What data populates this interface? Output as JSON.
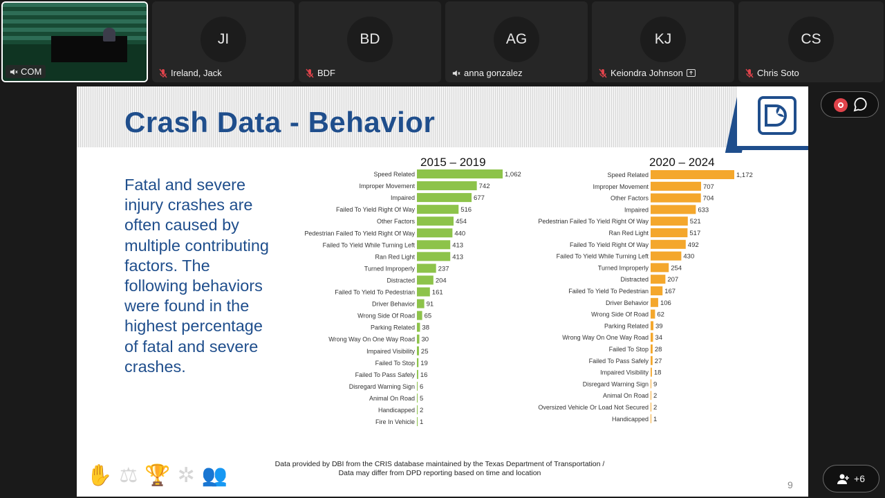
{
  "participants": [
    {
      "initials": "JI",
      "name": "Ireland, Jack",
      "mic": "muted"
    },
    {
      "initials": "BD",
      "name": "BDF",
      "mic": "muted"
    },
    {
      "initials": "AG",
      "name": "anna gonzalez",
      "mic": "speaker-off"
    },
    {
      "initials": "KJ",
      "name": "Keiondra Johnson",
      "mic": "muted"
    },
    {
      "initials": "CS",
      "name": "Chris Soto",
      "mic": "muted"
    }
  ],
  "video_tile": {
    "label": "COM"
  },
  "slide": {
    "title": "Crash Data - Behavior",
    "intro": "Fatal and severe injury crashes are often caused by multiple contributing factors. The following behaviors were found in the highest percentage of fatal and severe crashes.",
    "footer_line1": "Data provided by DBI from the CRIS database maintained by the Texas Department of Transportation /",
    "footer_line2": "Data may differ from DPD reporting based on time and location",
    "page_number": "9"
  },
  "controls": {
    "participants_more": "+6"
  },
  "colors": {
    "chart1": "#8dc34a",
    "chart2": "#f4a72c",
    "title": "#1f4e8c"
  },
  "chart_data": [
    {
      "type": "bar",
      "orientation": "horizontal",
      "title": "2015 – 2019",
      "categories": [
        "Speed Related",
        "Improper Movement",
        "Impaired",
        "Failed To Yield Right Of Way",
        "Other Factors",
        "Pedestrian Failed To Yield Right Of Way",
        "Failed To Yield While Turning Left",
        "Ran Red Light",
        "Turned Improperly",
        "Distracted",
        "Failed To Yield To Pedestrian",
        "Driver Behavior",
        "Wrong Side Of Road",
        "Parking Related",
        "Wrong Way On One Way Road",
        "Impaired Visibility",
        "Failed To Stop",
        "Failed To Pass Safely",
        "Disregard Warning Sign",
        "Animal On Road",
        "Handicapped",
        "Fire In Vehicle"
      ],
      "values": [
        1062,
        742,
        677,
        516,
        454,
        440,
        413,
        413,
        237,
        204,
        161,
        91,
        65,
        38,
        30,
        25,
        19,
        16,
        6,
        5,
        2,
        1
      ],
      "labels": [
        "1,062",
        "742",
        "677",
        "516",
        "454",
        "440",
        "413",
        "413",
        "237",
        "204",
        "161",
        "91",
        "65",
        "38",
        "30",
        "25",
        "19",
        "16",
        "6",
        "5",
        "2",
        "1"
      ],
      "xlim": [
        0,
        1200
      ]
    },
    {
      "type": "bar",
      "orientation": "horizontal",
      "title": "2020 – 2024",
      "categories": [
        "Speed Related",
        "Improper Movement",
        "Other Factors",
        "Impaired",
        "Pedestrian Failed To Yield Right Of Way",
        "Ran Red Light",
        "Failed To Yield Right Of Way",
        "Failed To Yield While Turning Left",
        "Turned Improperly",
        "Distracted",
        "Failed To Yield To Pedestrian",
        "Driver Behavior",
        "Wrong Side Of Road",
        "Parking Related",
        "Wrong Way On One Way Road",
        "Failed To Stop",
        "Failed To Pass Safely",
        "Impaired Visibility",
        "Disregard Warning Sign",
        "Animal On Road",
        "Oversized Vehicle Or Load Not Secured",
        "Handicapped"
      ],
      "values": [
        1172,
        707,
        704,
        633,
        521,
        517,
        492,
        430,
        254,
        207,
        167,
        106,
        62,
        39,
        34,
        28,
        27,
        18,
        9,
        2,
        2,
        1
      ],
      "labels": [
        "1,172",
        "707",
        "704",
        "633",
        "521",
        "517",
        "492",
        "430",
        "254",
        "207",
        "167",
        "106",
        "62",
        "39",
        "34",
        "28",
        "27",
        "18",
        "9",
        "2",
        "2",
        "1"
      ],
      "xlim": [
        0,
        1200
      ]
    }
  ]
}
